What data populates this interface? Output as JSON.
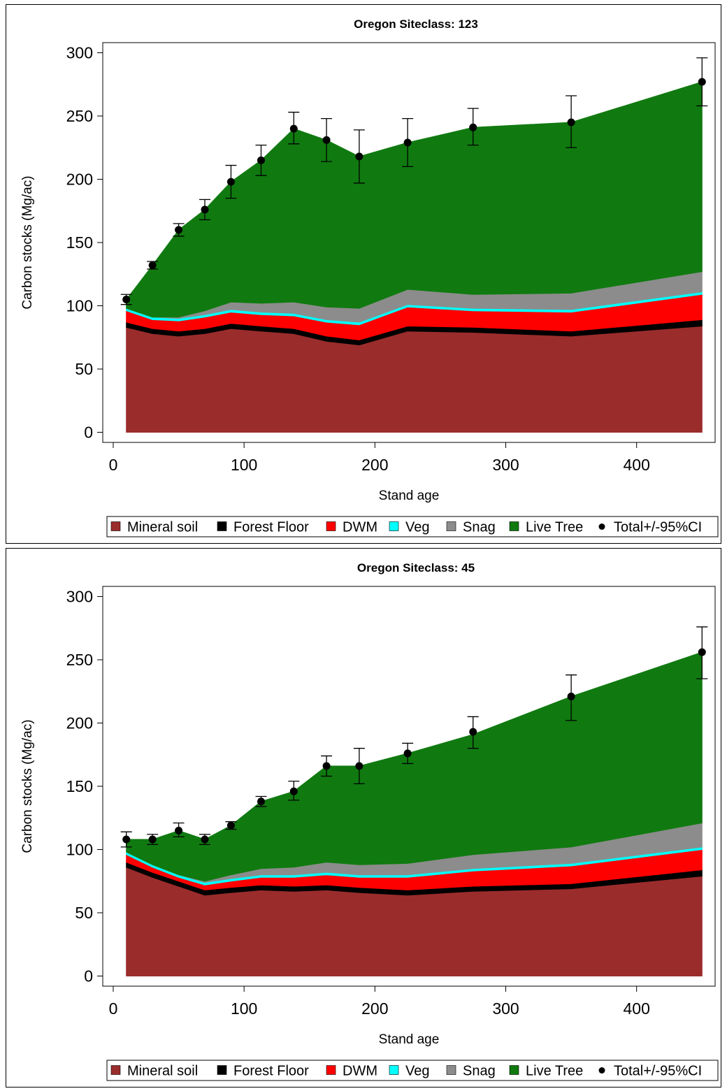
{
  "legend_labels": [
    "Mineral soil",
    "Forest Floor",
    "DWM",
    "Veg",
    "Snag",
    "Live Tree",
    "Total+/-95%CI"
  ],
  "colors": {
    "mineral_soil": "#9b2c2c",
    "forest_floor": "#000000",
    "dwm": "#ff0000",
    "veg": "#00ffff",
    "snag": "#8c8c8c",
    "live_tree": "#107a10",
    "total": "#000000"
  },
  "chart_data": [
    {
      "type": "area",
      "title": "Oregon Siteclass: 123",
      "xlabel": "Stand age",
      "ylabel": "Carbon stocks (Mg/ac)",
      "xlim": [
        0,
        450
      ],
      "ylim": [
        0,
        300
      ],
      "xticks": [
        "0",
        "100",
        "200",
        "300",
        "400"
      ],
      "yticks": [
        "0",
        "50",
        "100",
        "150",
        "200",
        "250",
        "300"
      ],
      "stacked": true,
      "x": [
        10,
        30,
        50,
        70,
        90,
        113,
        138,
        163,
        188,
        225,
        275,
        350,
        450
      ],
      "series": [
        {
          "name": "Mineral soil",
          "values": [
            83,
            78,
            76,
            78,
            82,
            80,
            78,
            72,
            69,
            80,
            79,
            76,
            84
          ]
        },
        {
          "name": "Forest Floor",
          "values": [
            4,
            4,
            4,
            4,
            4,
            4,
            4,
            4,
            4,
            4,
            4,
            4,
            5
          ]
        },
        {
          "name": "DWM",
          "values": [
            9,
            7,
            8,
            9,
            9,
            9,
            10,
            11,
            12,
            15,
            13,
            15,
            20
          ]
        },
        {
          "name": "Veg",
          "values": [
            2,
            2,
            2,
            2,
            2,
            2,
            2,
            2,
            2,
            2,
            2,
            2,
            2
          ]
        },
        {
          "name": "Snag",
          "values": [
            0,
            0,
            1,
            3,
            6,
            7,
            9,
            10,
            11,
            12,
            11,
            13,
            16
          ]
        },
        {
          "name": "Live Tree",
          "values": [
            7,
            41,
            69,
            80,
            95,
            113,
            137,
            132,
            120,
            116,
            132,
            135,
            150
          ]
        }
      ],
      "total": {
        "name": "Total+/-95%CI",
        "values": [
          105,
          132,
          160,
          176,
          198,
          215,
          240,
          231,
          218,
          229,
          241,
          245,
          277
        ],
        "lower": [
          101,
          129,
          155,
          168,
          185,
          203,
          228,
          214,
          197,
          210,
          227,
          225,
          258
        ],
        "upper": [
          109,
          135,
          165,
          184,
          211,
          227,
          253,
          248,
          239,
          248,
          256,
          266,
          296
        ]
      },
      "legend_position": "bottom"
    },
    {
      "type": "area",
      "title": "Oregon Siteclass: 45",
      "xlabel": "Stand age",
      "ylabel": "Carbon stocks (Mg/ac)",
      "xlim": [
        0,
        450
      ],
      "ylim": [
        0,
        300
      ],
      "xticks": [
        "0",
        "100",
        "200",
        "300",
        "400"
      ],
      "yticks": [
        "0",
        "50",
        "100",
        "150",
        "200",
        "250",
        "300"
      ],
      "stacked": true,
      "x": [
        10,
        30,
        50,
        70,
        90,
        113,
        138,
        163,
        188,
        225,
        275,
        350,
        450
      ],
      "series": [
        {
          "name": "Mineral soil",
          "values": [
            86,
            78,
            71,
            64,
            66,
            68,
            67,
            68,
            66,
            64,
            67,
            69,
            79
          ]
        },
        {
          "name": "Forest Floor",
          "values": [
            4,
            4,
            4,
            4,
            4,
            4,
            4,
            4,
            4,
            4,
            4,
            4,
            5
          ]
        },
        {
          "name": "DWM",
          "values": [
            6,
            4,
            3,
            4,
            5,
            6,
            7,
            8,
            8,
            10,
            12,
            14,
            16
          ]
        },
        {
          "name": "Veg",
          "values": [
            2,
            2,
            2,
            2,
            2,
            2,
            2,
            2,
            2,
            2,
            2,
            2,
            2
          ]
        },
        {
          "name": "Snag",
          "values": [
            0,
            0,
            0,
            1,
            3,
            5,
            6,
            8,
            8,
            9,
            11,
            13,
            19
          ]
        },
        {
          "name": "Live Tree",
          "values": [
            10,
            20,
            35,
            33,
            39,
            53,
            60,
            76,
            78,
            87,
            95,
            119,
            135
          ]
        }
      ],
      "total": {
        "name": "Total+/-95%CI",
        "values": [
          108,
          108,
          115,
          108,
          119,
          138,
          146,
          166,
          166,
          176,
          193,
          221,
          256
        ],
        "lower": [
          102,
          104,
          110,
          104,
          116,
          134,
          139,
          158,
          152,
          168,
          180,
          202,
          235
        ],
        "upper": [
          114,
          112,
          121,
          112,
          122,
          142,
          154,
          174,
          180,
          184,
          205,
          238,
          276
        ]
      },
      "legend_position": "bottom"
    }
  ]
}
